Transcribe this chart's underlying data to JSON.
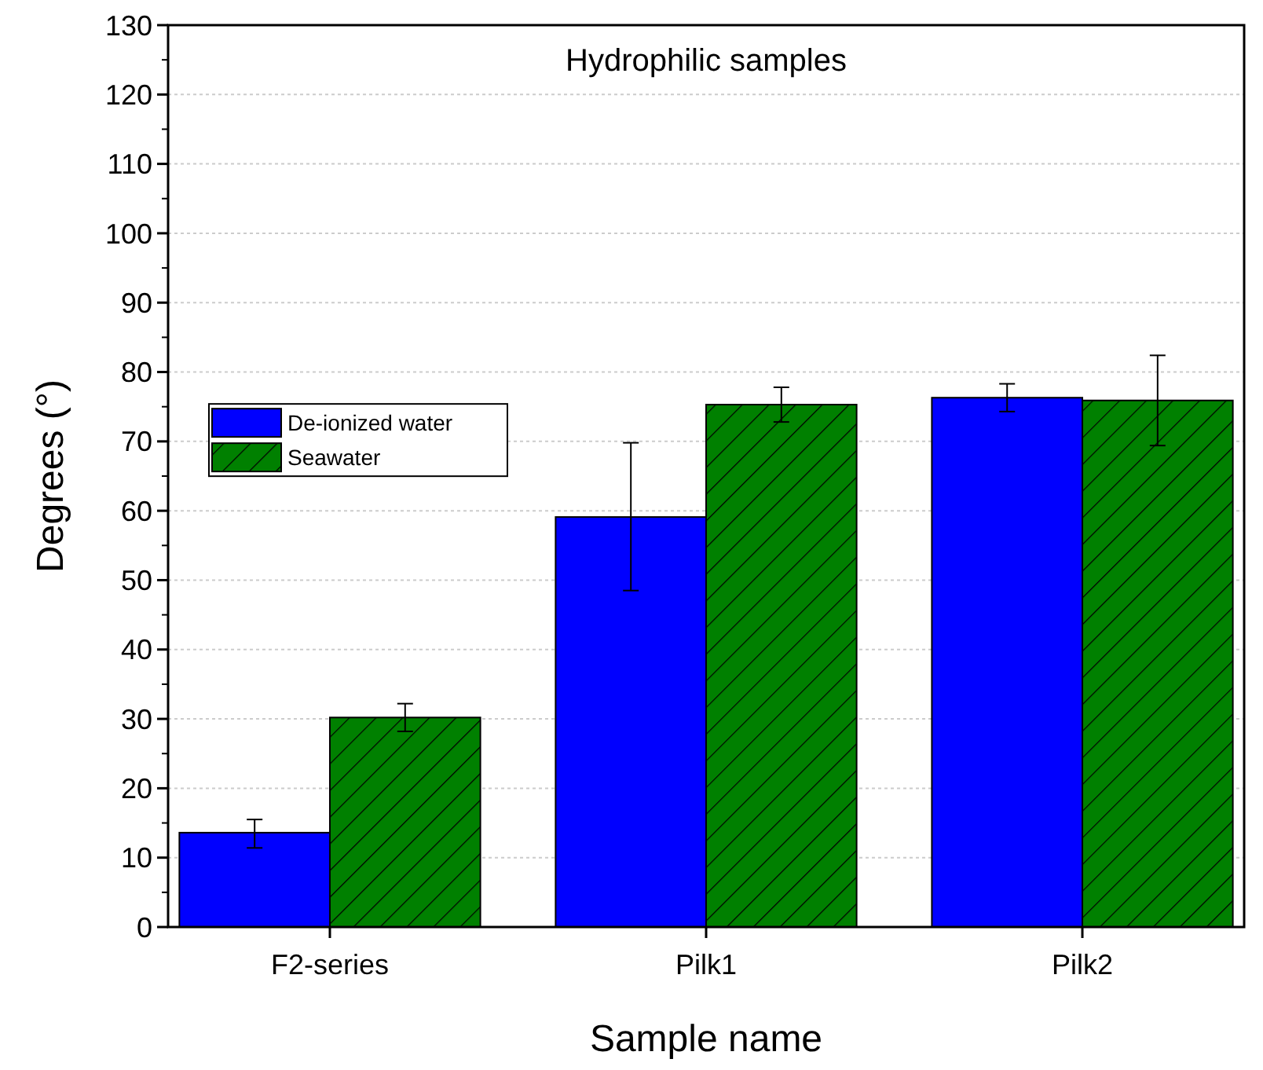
{
  "chart_data": {
    "type": "bar",
    "title": "Hydrophilic samples",
    "xlabel": "Sample name",
    "ylabel": "Degrees (°)",
    "categories": [
      "F2-series",
      "Pilk1",
      "Pilk2"
    ],
    "series": [
      {
        "name": "De-ionized water",
        "color": "#0000ff",
        "values": [
          13.6,
          59.1,
          76.3
        ],
        "errors": [
          [
            11.4,
            15.5
          ],
          [
            48.5,
            69.8
          ],
          [
            74.3,
            78.3
          ]
        ]
      },
      {
        "name": "Seawater",
        "color": "#008000",
        "values": [
          30.2,
          75.3,
          75.9
        ],
        "errors": [
          [
            28.2,
            32.2
          ],
          [
            72.8,
            77.8
          ],
          [
            69.4,
            82.4
          ]
        ]
      }
    ],
    "ylim": [
      0,
      130
    ],
    "yticks": [
      0,
      10,
      20,
      30,
      40,
      50,
      60,
      70,
      80,
      90,
      100,
      110,
      120,
      130
    ],
    "grid": "y",
    "legend": "left"
  }
}
